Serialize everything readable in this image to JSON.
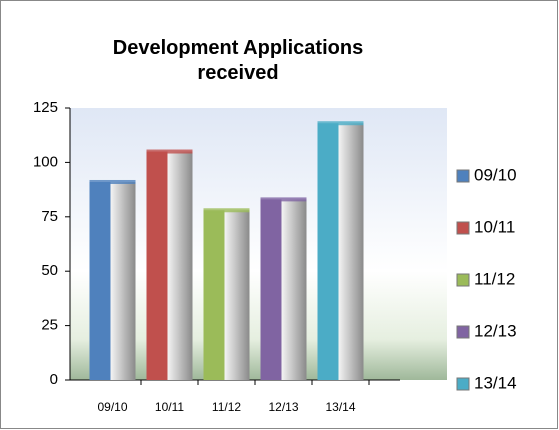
{
  "chart_data": {
    "type": "bar",
    "title": "Development Applications received",
    "categories": [
      "09/10",
      "10/11",
      "11/12",
      "12/13",
      "13/14"
    ],
    "values": [
      91,
      105,
      78,
      83,
      118
    ],
    "colors": [
      "#4f81bd",
      "#c0504d",
      "#9bbb59",
      "#8064a2",
      "#4bacc6"
    ],
    "ylim": [
      0,
      125
    ],
    "yticks": [
      0,
      25,
      50,
      75,
      100,
      125
    ],
    "legend": "right"
  }
}
